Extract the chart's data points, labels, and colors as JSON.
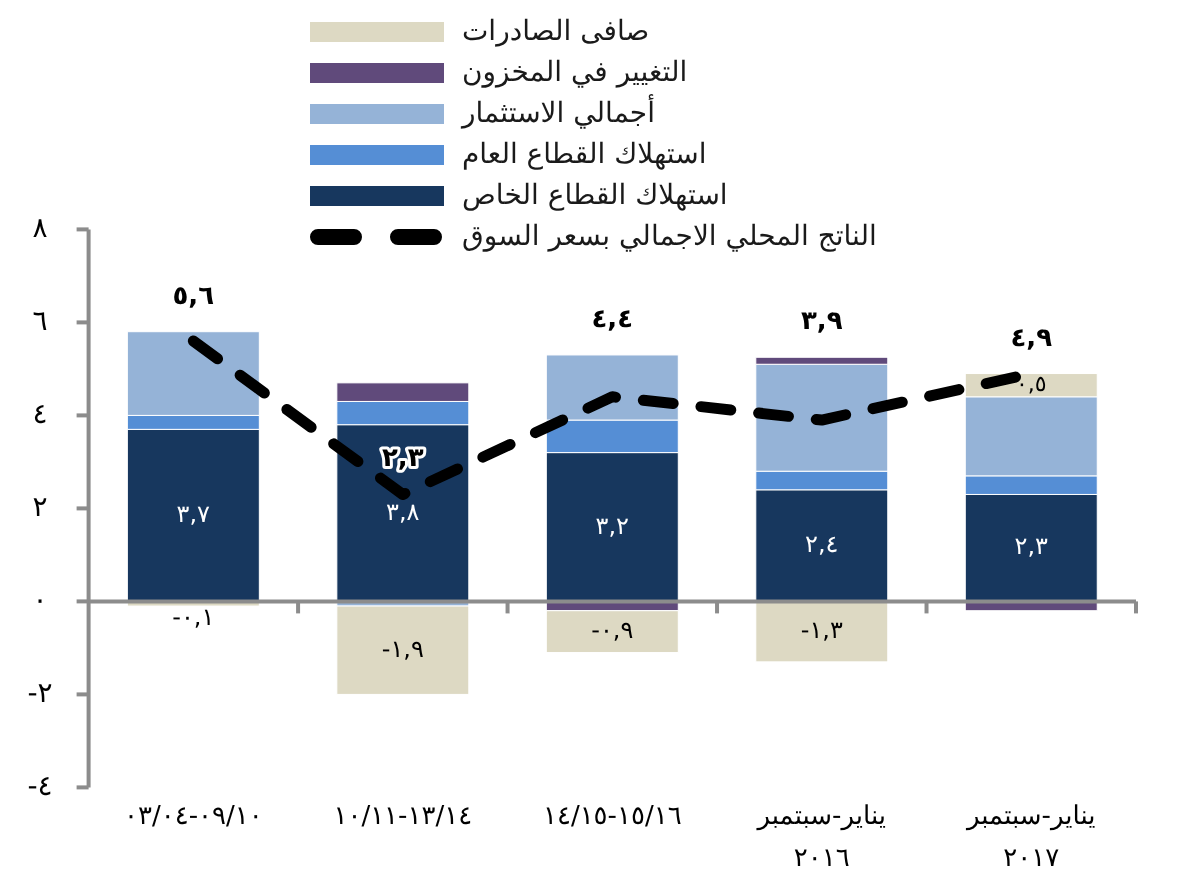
{
  "chart_data": {
    "type": "bar",
    "stacked": true,
    "categories": [
      "٠٩/١٠-٠٣/٠٤",
      "١٣/١٤-١٠/١١",
      "١٥/١٦-١٤/١٥",
      "يناير-سبتمبر\n٢٠١٦",
      "يناير-سبتمبر\n٢٠١٧"
    ],
    "series": [
      {
        "name": "استهلاك القطاع الخاص",
        "color": "#17375e",
        "values": [
          3.7,
          3.8,
          3.2,
          2.4,
          2.3
        ],
        "value_labels": [
          "٣,٧",
          "٣,٨",
          "٣,٢",
          "٢,٤",
          "٢,٣"
        ]
      },
      {
        "name": "استهلاك القطاع العام",
        "color": "#558ed5",
        "values": [
          0.3,
          0.5,
          0.7,
          0.4,
          0.4
        ]
      },
      {
        "name": "أجمالي الاستثمار",
        "color": "#95b3d7",
        "values": [
          1.8,
          -0.1,
          1.4,
          2.3,
          1.7
        ]
      },
      {
        "name": "التغيير في المخزون",
        "color": "#604a7b",
        "values": [
          null,
          0.4,
          -0.2,
          0.15,
          -0.2
        ]
      },
      {
        "name": "صافى الصادرات",
        "color": "#ddd9c3",
        "values": [
          -0.1,
          -1.9,
          -0.9,
          -1.3,
          0.5
        ],
        "value_labels": [
          "-٠,١",
          "-١,٩",
          "-٠,٩",
          "-١,٣",
          "٠,٥"
        ]
      },
      {
        "name": "الناتج المحلي الاجمالي بسعر السوق",
        "type": "line",
        "color": "#000000",
        "line_style": "dashed",
        "values": [
          5.6,
          2.3,
          4.4,
          3.9,
          4.9
        ],
        "value_labels": [
          "٥,٦",
          "٢,٣",
          "٤,٤",
          "٣,٩",
          "٤,٩"
        ]
      }
    ],
    "ylim": [
      -4,
      8
    ],
    "yticks": [
      {
        "value": -4,
        "label": "-٤"
      },
      {
        "value": -2,
        "label": "-٢"
      },
      {
        "value": 0,
        "label": "٠"
      },
      {
        "value": 2,
        "label": "٢"
      },
      {
        "value": 4,
        "label": "٤"
      },
      {
        "value": 6,
        "label": "٦"
      },
      {
        "value": 8,
        "label": "٨"
      }
    ],
    "legend": "top"
  }
}
